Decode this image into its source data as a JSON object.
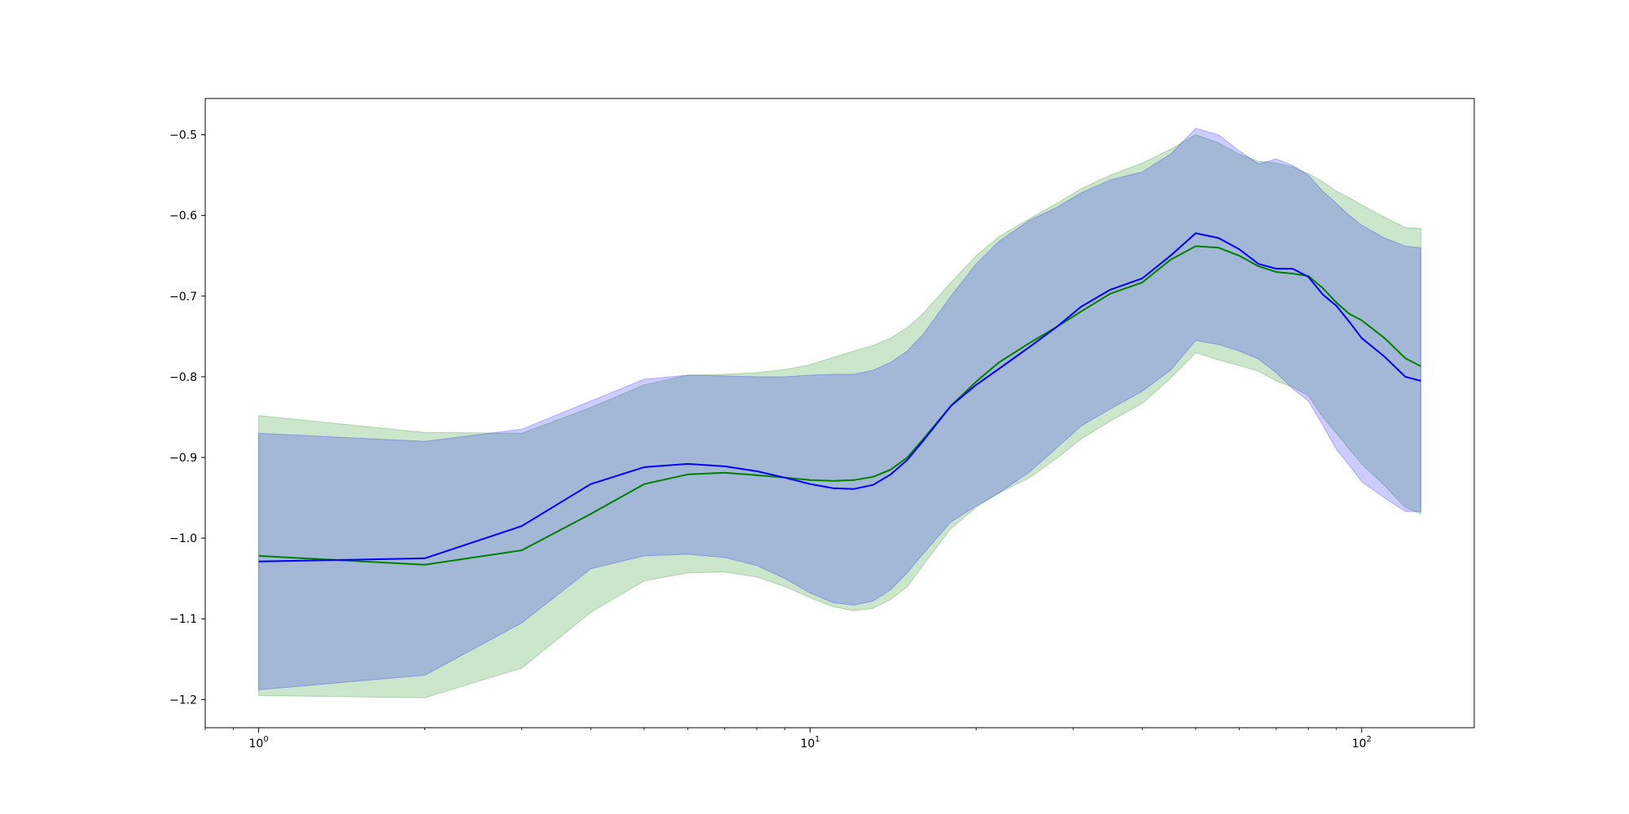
{
  "chart_data": {
    "type": "line",
    "title": "",
    "xlabel": "",
    "ylabel": "",
    "xscale": "log",
    "xlim": [
      0.8,
      160
    ],
    "ylim": [
      -1.235,
      -0.455
    ],
    "grid": false,
    "legend": "none",
    "x_ticks": [
      {
        "value": 1,
        "base": "10",
        "exp": "0"
      },
      {
        "value": 10,
        "base": "10",
        "exp": "1"
      },
      {
        "value": 100,
        "base": "10",
        "exp": "2"
      }
    ],
    "y_ticks": [
      {
        "value": -0.5,
        "label": "−0.5"
      },
      {
        "value": -0.6,
        "label": "−0.6"
      },
      {
        "value": -0.7,
        "label": "−0.7"
      },
      {
        "value": -0.8,
        "label": "−0.8"
      },
      {
        "value": -0.9,
        "label": "−0.9"
      },
      {
        "value": -1.0,
        "label": "−1.0"
      },
      {
        "value": -1.1,
        "label": "−1.1"
      },
      {
        "value": -1.2,
        "label": "−1.2"
      }
    ],
    "x": [
      1,
      2,
      3,
      4,
      5,
      6,
      7,
      8,
      9,
      10,
      11,
      12,
      13,
      14,
      15,
      16,
      18,
      20,
      22,
      25,
      28,
      31,
      35,
      40,
      45,
      50,
      55,
      60,
      65,
      70,
      75,
      80,
      85,
      90,
      95,
      100,
      110,
      120,
      128
    ],
    "series": [
      {
        "color": "#008000",
        "band_color": "#008000",
        "mean": [
          -1.022,
          -1.033,
          -1.015,
          -0.97,
          -0.933,
          -0.921,
          -0.919,
          -0.922,
          -0.925,
          -0.928,
          -0.929,
          -0.928,
          -0.924,
          -0.915,
          -0.9,
          -0.878,
          -0.836,
          -0.806,
          -0.782,
          -0.758,
          -0.738,
          -0.719,
          -0.697,
          -0.683,
          -0.655,
          -0.638,
          -0.64,
          -0.65,
          -0.663,
          -0.67,
          -0.672,
          -0.675,
          -0.69,
          -0.708,
          -0.722,
          -0.73,
          -0.752,
          -0.777,
          -0.787
        ],
        "upper": [
          -0.848,
          -0.869,
          -0.87,
          -0.838,
          -0.81,
          -0.798,
          -0.797,
          -0.795,
          -0.791,
          -0.785,
          -0.776,
          -0.768,
          -0.761,
          -0.752,
          -0.739,
          -0.722,
          -0.683,
          -0.65,
          -0.626,
          -0.604,
          -0.585,
          -0.567,
          -0.55,
          -0.535,
          -0.518,
          -0.5,
          -0.51,
          -0.524,
          -0.533,
          -0.535,
          -0.54,
          -0.548,
          -0.558,
          -0.57,
          -0.578,
          -0.587,
          -0.602,
          -0.615,
          -0.616
        ],
        "lower": [
          -1.195,
          -1.198,
          -1.161,
          -1.092,
          -1.053,
          -1.043,
          -1.042,
          -1.048,
          -1.06,
          -1.074,
          -1.085,
          -1.09,
          -1.087,
          -1.076,
          -1.06,
          -1.034,
          -0.988,
          -0.962,
          -0.944,
          -0.925,
          -0.901,
          -0.877,
          -0.855,
          -0.833,
          -0.802,
          -0.77,
          -0.779,
          -0.786,
          -0.793,
          -0.805,
          -0.813,
          -0.823,
          -0.85,
          -0.87,
          -0.89,
          -0.908,
          -0.935,
          -0.962,
          -0.97
        ]
      },
      {
        "color": "#0000ff",
        "band_color": "#0000ff",
        "mean": [
          -1.029,
          -1.025,
          -0.985,
          -0.933,
          -0.912,
          -0.908,
          -0.911,
          -0.917,
          -0.925,
          -0.933,
          -0.938,
          -0.939,
          -0.934,
          -0.921,
          -0.903,
          -0.88,
          -0.836,
          -0.81,
          -0.79,
          -0.763,
          -0.738,
          -0.713,
          -0.692,
          -0.678,
          -0.65,
          -0.622,
          -0.628,
          -0.642,
          -0.66,
          -0.666,
          -0.666,
          -0.676,
          -0.698,
          -0.712,
          -0.732,
          -0.752,
          -0.775,
          -0.8,
          -0.805
        ],
        "upper": [
          -0.87,
          -0.88,
          -0.865,
          -0.83,
          -0.803,
          -0.798,
          -0.799,
          -0.8,
          -0.8,
          -0.798,
          -0.797,
          -0.797,
          -0.792,
          -0.782,
          -0.768,
          -0.748,
          -0.7,
          -0.66,
          -0.632,
          -0.606,
          -0.59,
          -0.572,
          -0.556,
          -0.546,
          -0.524,
          -0.492,
          -0.5,
          -0.52,
          -0.536,
          -0.53,
          -0.538,
          -0.55,
          -0.57,
          -0.585,
          -0.6,
          -0.612,
          -0.628,
          -0.638,
          -0.64
        ],
        "lower": [
          -1.188,
          -1.17,
          -1.105,
          -1.038,
          -1.022,
          -1.02,
          -1.024,
          -1.034,
          -1.05,
          -1.068,
          -1.08,
          -1.083,
          -1.078,
          -1.064,
          -1.043,
          -1.02,
          -0.98,
          -0.96,
          -0.944,
          -0.918,
          -0.888,
          -0.861,
          -0.84,
          -0.818,
          -0.792,
          -0.755,
          -0.76,
          -0.768,
          -0.778,
          -0.795,
          -0.815,
          -0.83,
          -0.86,
          -0.89,
          -0.91,
          -0.93,
          -0.95,
          -0.967,
          -0.967
        ]
      }
    ]
  }
}
